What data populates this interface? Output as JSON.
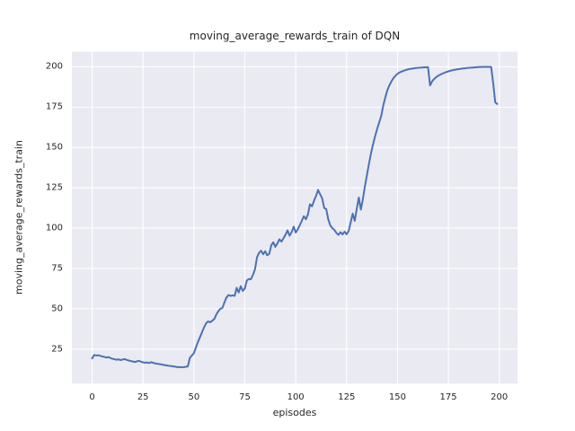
{
  "chart_data": {
    "type": "line",
    "title": "moving_average_rewards_train of DQN",
    "xlabel": "episodes",
    "ylabel": "moving_average_rewards_train",
    "legend": null,
    "grid": true,
    "xlim": [
      -9.95,
      208.95
    ],
    "ylim": [
      3.6,
      209.4
    ],
    "xticks": [
      0,
      25,
      50,
      75,
      100,
      125,
      150,
      175,
      200
    ],
    "yticks": [
      25,
      50,
      75,
      100,
      125,
      150,
      175,
      200
    ],
    "colors": {
      "line": "#4C72B0",
      "plot_bg": "#EAEAF2",
      "grid": "#FFFFFF",
      "text": "#262626",
      "figure_bg": "#FFFFFF"
    },
    "series": [
      {
        "name": "moving_average_rewards_train",
        "x_start": 0,
        "x_step": 1,
        "values": [
          19.2,
          21.3,
          21.0,
          21.2,
          20.8,
          20.4,
          20.1,
          19.8,
          20.0,
          19.5,
          19.0,
          18.7,
          18.4,
          18.6,
          18.2,
          18.5,
          18.8,
          18.3,
          17.9,
          17.6,
          17.3,
          17.0,
          17.4,
          17.7,
          17.2,
          16.8,
          16.5,
          16.7,
          16.3,
          16.9,
          16.5,
          16.1,
          15.9,
          15.7,
          15.5,
          15.2,
          15.0,
          14.8,
          14.6,
          14.4,
          14.2,
          14.0,
          13.8,
          13.9,
          13.7,
          13.8,
          14.0,
          14.2,
          19.5,
          21.0,
          22.5,
          26.0,
          29.5,
          32.5,
          35.5,
          38.5,
          41.0,
          42.2,
          41.6,
          42.6,
          43.6,
          46.4,
          48.5,
          50.0,
          50.6,
          54.0,
          57.0,
          58.5,
          58.0,
          58.3,
          58.0,
          63.0,
          60.1,
          64.0,
          61.1,
          62.6,
          67.5,
          68.5,
          68.3,
          71.0,
          74.5,
          81.9,
          84.7,
          86.0,
          83.8,
          85.7,
          83.2,
          84.0,
          89.4,
          91.2,
          88.4,
          90.5,
          93.1,
          91.6,
          93.8,
          95.9,
          98.6,
          95.3,
          97.5,
          100.9,
          97.3,
          99.2,
          101.8,
          104.5,
          107.4,
          105.5,
          108.5,
          114.8,
          113.5,
          117.0,
          120.0,
          123.7,
          121.0,
          118.5,
          112.5,
          111.8,
          105.4,
          101.7,
          100.0,
          98.9,
          97.0,
          95.8,
          97.5,
          96.1,
          97.8,
          96.2,
          98.2,
          103.5,
          109.0,
          104.5,
          112.0,
          119.0,
          111.5,
          118.0,
          126.0,
          133.0,
          140.0,
          146.5,
          152.0,
          157.0,
          161.5,
          165.5,
          169.5,
          176.0,
          181.0,
          185.5,
          188.5,
          191.0,
          193.0,
          194.5,
          195.7,
          196.5,
          197.1,
          197.6,
          198.0,
          198.4,
          198.7,
          198.9,
          199.1,
          199.3,
          199.4,
          199.5,
          199.6,
          199.7,
          199.8,
          199.8,
          188.5,
          191.0,
          192.5,
          193.6,
          194.5,
          195.2,
          195.8,
          196.3,
          196.8,
          197.2,
          197.6,
          197.9,
          198.2,
          198.4,
          198.6,
          198.8,
          199.0,
          199.1,
          199.3,
          199.4,
          199.5,
          199.6,
          199.7,
          199.8,
          199.9,
          199.9,
          200.0,
          200.0,
          200.0,
          200.0,
          199.9,
          190.0,
          178.0,
          177.0
        ]
      }
    ]
  }
}
